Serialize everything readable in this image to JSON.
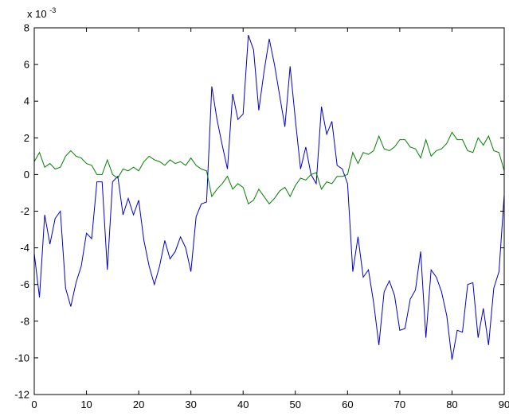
{
  "chart_data": {
    "type": "line",
    "title": "",
    "xlabel": "",
    "ylabel": "",
    "exponent_label": "x 10",
    "exponent_power": "-3",
    "xlim": [
      0,
      90
    ],
    "ylim": [
      -12,
      8
    ],
    "xticks": [
      0,
      10,
      20,
      30,
      40,
      50,
      60,
      70,
      80,
      90
    ],
    "yticks": [
      -12,
      -10,
      -8,
      -6,
      -4,
      -2,
      0,
      2,
      4,
      6,
      8
    ],
    "xtick_labels": [
      "0",
      "10",
      "20",
      "30",
      "40",
      "50",
      "60",
      "70",
      "80",
      "90"
    ],
    "ytick_labels": [
      "-12",
      "-10",
      "-8",
      "-6",
      "-4",
      "-2",
      "0",
      "2",
      "4",
      "6",
      "8"
    ],
    "grid": false,
    "legend": "none",
    "x": [
      0,
      1,
      2,
      3,
      4,
      5,
      6,
      7,
      8,
      9,
      10,
      11,
      12,
      13,
      14,
      15,
      16,
      17,
      18,
      19,
      20,
      21,
      22,
      23,
      24,
      25,
      26,
      27,
      28,
      29,
      30,
      31,
      32,
      33,
      34,
      35,
      36,
      37,
      38,
      39,
      40,
      41,
      42,
      43,
      44,
      45,
      46,
      47,
      48,
      49,
      50,
      51,
      52,
      53,
      54,
      55,
      56,
      57,
      58,
      59,
      60,
      61,
      62,
      63,
      64,
      65,
      66,
      67,
      68,
      69,
      70,
      71,
      72,
      73,
      74,
      75,
      76,
      77,
      78,
      79,
      80,
      81,
      82,
      83,
      84,
      85,
      86,
      87,
      88,
      89,
      90
    ],
    "series": [
      {
        "color": "#0000cc",
        "values": [
          -4.3,
          -6.7,
          -2.2,
          -3.8,
          -2.4,
          -2.0,
          -6.2,
          -7.2,
          -5.9,
          -5.0,
          -3.2,
          -3.5,
          -0.4,
          -0.4,
          -5.2,
          -0.4,
          -0.1,
          -2.2,
          -1.3,
          -2.2,
          -1.4,
          -3.6,
          -5.0,
          -6.0,
          -5.0,
          -3.6,
          -4.6,
          -4.2,
          -3.4,
          -4.0,
          -5.3,
          -2.3,
          -1.6,
          -1.5,
          4.8,
          3.0,
          1.6,
          0.3,
          4.4,
          3.0,
          3.3,
          7.6,
          6.8,
          3.5,
          5.6,
          7.4,
          6.0,
          4.3,
          2.6,
          5.9,
          3.0,
          0.3,
          1.5,
          0.0,
          -0.5,
          3.7,
          2.2,
          2.9,
          0.5,
          0.3,
          -0.5,
          -5.3,
          -3.4,
          -5.6,
          -5.2,
          -7.0,
          -9.3,
          -6.4,
          -5.8,
          -6.6,
          -8.5,
          -8.4,
          -6.8,
          -6.3,
          -4.2,
          -8.9,
          -5.2,
          -5.6,
          -6.4,
          -7.7,
          -10.1,
          -8.5,
          -8.6,
          -6.0,
          -5.9,
          -8.9,
          -7.3,
          -9.3,
          -6.2,
          -5.3,
          -1.1
        ]
      },
      {
        "color": "#008000",
        "values": [
          0.7,
          1.2,
          0.4,
          0.6,
          0.3,
          0.4,
          1.0,
          1.3,
          1.0,
          0.9,
          0.6,
          0.5,
          0.0,
          0.0,
          0.8,
          0.0,
          -0.2,
          0.3,
          0.2,
          0.4,
          0.2,
          0.7,
          1.0,
          0.8,
          0.7,
          0.5,
          0.8,
          0.6,
          0.7,
          0.5,
          0.9,
          0.5,
          0.3,
          0.2,
          -1.2,
          -0.8,
          -0.5,
          -0.1,
          -0.8,
          -0.5,
          -0.7,
          -1.6,
          -1.4,
          -0.8,
          -1.2,
          -1.6,
          -1.3,
          -0.9,
          -0.7,
          -1.2,
          -0.6,
          -0.2,
          -0.3,
          0.0,
          0.1,
          -0.8,
          -0.4,
          -0.5,
          -0.1,
          -0.1,
          0.0,
          1.2,
          0.6,
          1.2,
          1.1,
          1.3,
          2.1,
          1.4,
          1.3,
          1.5,
          1.9,
          1.9,
          1.5,
          1.4,
          0.9,
          1.9,
          1.0,
          1.3,
          1.4,
          1.7,
          2.3,
          1.9,
          1.9,
          1.3,
          1.2,
          2.0,
          1.6,
          2.1,
          1.3,
          1.2,
          0.2
        ]
      }
    ]
  }
}
